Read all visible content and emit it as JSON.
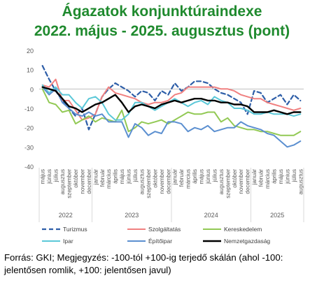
{
  "header": {
    "title_line1": "Ágazatok konjunktúraindexe",
    "title_line2": "2022. május - 2025. augusztus (pont)"
  },
  "footer": {
    "source": "Forrás: GKI; Megjegyzés: -100-tól +100-ig terjedő skálán (ahol -100: jelentősen romlik, +100: jelentősen javul)"
  },
  "chart_data": {
    "type": "line",
    "title": "Ágazatok konjunktúraindexe 2022. május - 2025. augusztus (pont)",
    "xlabel": "",
    "ylabel": "",
    "ylim": [
      -40,
      20
    ],
    "yticks": [
      20,
      10,
      0,
      -10,
      -20,
      -30,
      -40
    ],
    "grid": false,
    "legend_position": "bottom",
    "x": [
      "május",
      "június",
      "július",
      "augusztus",
      "szeptember",
      "október",
      "november",
      "december",
      "január",
      "február",
      "március",
      "április",
      "május",
      "június",
      "július",
      "augusztus",
      "szeptember",
      "október",
      "november",
      "december",
      "január",
      "február",
      "március",
      "április",
      "május",
      "június",
      "július",
      "augusztus",
      "szeptember",
      "október",
      "november",
      "december",
      "január",
      "február",
      "március",
      "április",
      "május",
      "június",
      "július",
      "augusztus"
    ],
    "year_labels": [
      "2022",
      "2023",
      "2024",
      "2025"
    ],
    "series": [
      {
        "name": "Turizmus",
        "color": "#2e5ea8",
        "dash": true,
        "width": 2.2,
        "values": [
          12,
          5,
          -1,
          -6,
          -10,
          -14,
          -10,
          -21,
          -13,
          -4,
          0,
          3,
          1,
          -1,
          -4,
          -1,
          -2,
          -6,
          -1,
          -3,
          3,
          -1,
          1,
          4,
          4,
          3,
          0,
          -2,
          -3,
          -5,
          -7,
          -13,
          -1,
          -2,
          -7,
          -5,
          -3,
          -8,
          -3,
          -6
        ]
      },
      {
        "name": "Szolgáltatás",
        "color": "#f08080",
        "dash": false,
        "width": 2,
        "values": [
          2,
          1,
          5,
          -6,
          -6,
          -11,
          -16,
          -15,
          -13,
          -4,
          1,
          -2,
          -3,
          -4,
          -5,
          -7,
          -8,
          -7,
          -7,
          -6,
          -3,
          -2,
          1,
          1,
          1,
          1,
          1,
          0,
          0,
          -1,
          -3,
          -4,
          -5,
          -5,
          -7,
          -8,
          -9,
          -10,
          -11,
          -10
        ]
      },
      {
        "name": "Kereskedelem",
        "color": "#92c954",
        "dash": false,
        "width": 2,
        "values": [
          0,
          -7,
          -8,
          -12,
          -11,
          -18,
          -16,
          -14,
          -17,
          -15,
          -16,
          -17,
          -11,
          -22,
          -20,
          -17,
          -18,
          -17,
          -16,
          -18,
          -16,
          -14,
          -12,
          -13,
          -13,
          -12,
          -12,
          -17,
          -15,
          -19,
          -20,
          -21,
          -21,
          -22,
          -22,
          -23,
          -24,
          -24,
          -24,
          -22
        ]
      },
      {
        "name": "Ipar",
        "color": "#5bc8d8",
        "dash": false,
        "width": 2,
        "values": [
          2,
          -2,
          1,
          -3,
          -3,
          -7,
          -10,
          -5,
          -4,
          -7,
          -13,
          -16,
          -16,
          -13,
          -7,
          -7,
          -9,
          -11,
          -9,
          -7,
          -5,
          -7,
          -9,
          -7,
          -6,
          -8,
          -4,
          -6,
          -7,
          -10,
          -10,
          -11,
          -13,
          -13,
          -12,
          -13,
          -13,
          -13,
          -14,
          -13
        ]
      },
      {
        "name": "Építőipar",
        "color": "#5b8fd0",
        "dash": false,
        "width": 2,
        "values": [
          1,
          -3,
          0,
          -7,
          -10,
          -13,
          -14,
          -12,
          -14,
          -13,
          -17,
          -17,
          -17,
          -25,
          -18,
          -20,
          -24,
          -22,
          -23,
          -17,
          -17,
          -18,
          -22,
          -20,
          -21,
          -19,
          -22,
          -21,
          -20,
          -20,
          -17,
          -19,
          -20,
          -21,
          -23,
          -24,
          -27,
          -30,
          -29,
          -27
        ]
      },
      {
        "name": "Nemzetgazdaság",
        "color": "#000000",
        "dash": false,
        "width": 2.4,
        "values": [
          1,
          0,
          -1,
          -5,
          -9,
          -10,
          -12,
          -10,
          -8,
          -7,
          -5,
          -3,
          -7,
          -12,
          -9,
          -8,
          -9,
          -10,
          -8,
          -7,
          -6,
          -7,
          -6,
          -5,
          -5,
          -6,
          -6,
          -7,
          -7,
          -8,
          -8,
          -9,
          -12,
          -12,
          -12,
          -11,
          -12,
          -13,
          -12,
          -12
        ]
      }
    ]
  }
}
